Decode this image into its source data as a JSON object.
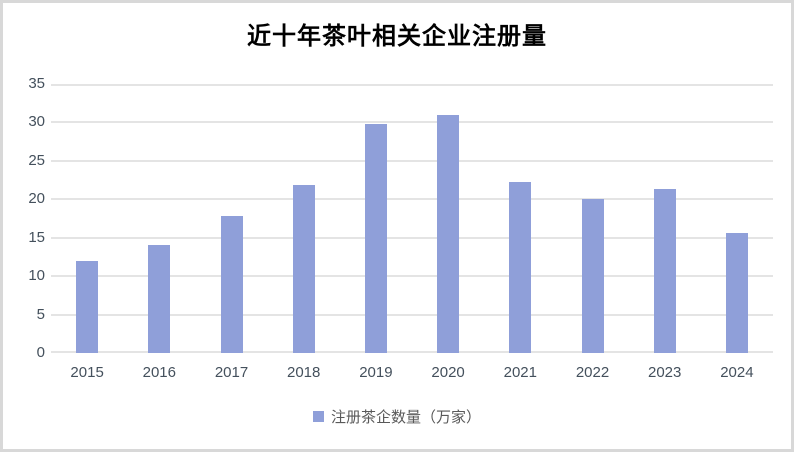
{
  "page": {
    "background": "#ffffff",
    "frame_border_color": "#d8d8d8"
  },
  "chart_data": {
    "type": "bar",
    "title": "近十年茶叶相关企业注册量",
    "categories": [
      "2015",
      "2016",
      "2017",
      "2018",
      "2019",
      "2020",
      "2021",
      "2022",
      "2023",
      "2024"
    ],
    "series": [
      {
        "name": "注册茶企数量（万家）",
        "values": [
          12,
          14,
          17.8,
          21.8,
          29.8,
          31,
          22.2,
          20,
          21.4,
          15.6
        ]
      }
    ],
    "xlabel": "",
    "ylabel": "",
    "ylim": [
      0,
      35
    ],
    "yticks": [
      0,
      5,
      10,
      15,
      20,
      25,
      30,
      35
    ],
    "grid": true,
    "legend_position": "bottom",
    "colors": {
      "bar": "#8f9fd9",
      "grid": "#e4e4e4",
      "tick_text": "#44505c",
      "title_text": "#000000",
      "legend_text": "#595959"
    }
  }
}
